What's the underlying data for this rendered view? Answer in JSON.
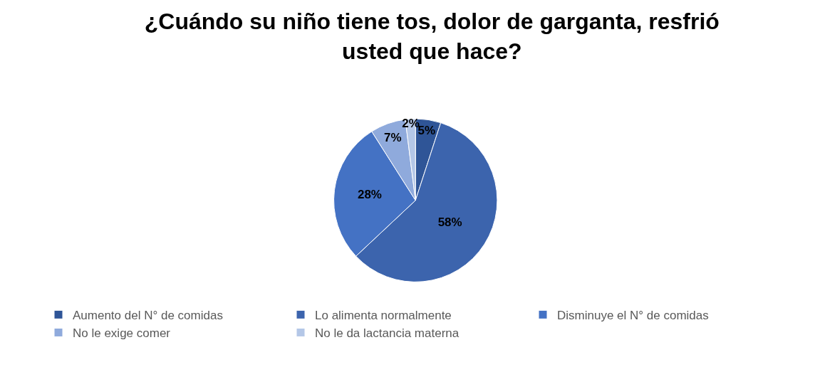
{
  "chart_data": {
    "type": "pie",
    "title": "¿Cuándo su niño tiene tos, dolor de garganta, resfrió usted que hace?",
    "categories": [
      "Aumento del N° de comidas",
      "Lo alimenta normalmente",
      "Disminuye el N° de comidas",
      "No le exige comer",
      "No le da lactancia materna"
    ],
    "values": [
      5,
      58,
      28,
      7,
      2
    ],
    "colors": [
      "#2f5597",
      "#3c64ad",
      "#4472c4",
      "#8faadc",
      "#b4c7e7"
    ],
    "value_labels": [
      "5%",
      "58%",
      "28%",
      "7%",
      "2%"
    ],
    "legend": "bottom"
  }
}
